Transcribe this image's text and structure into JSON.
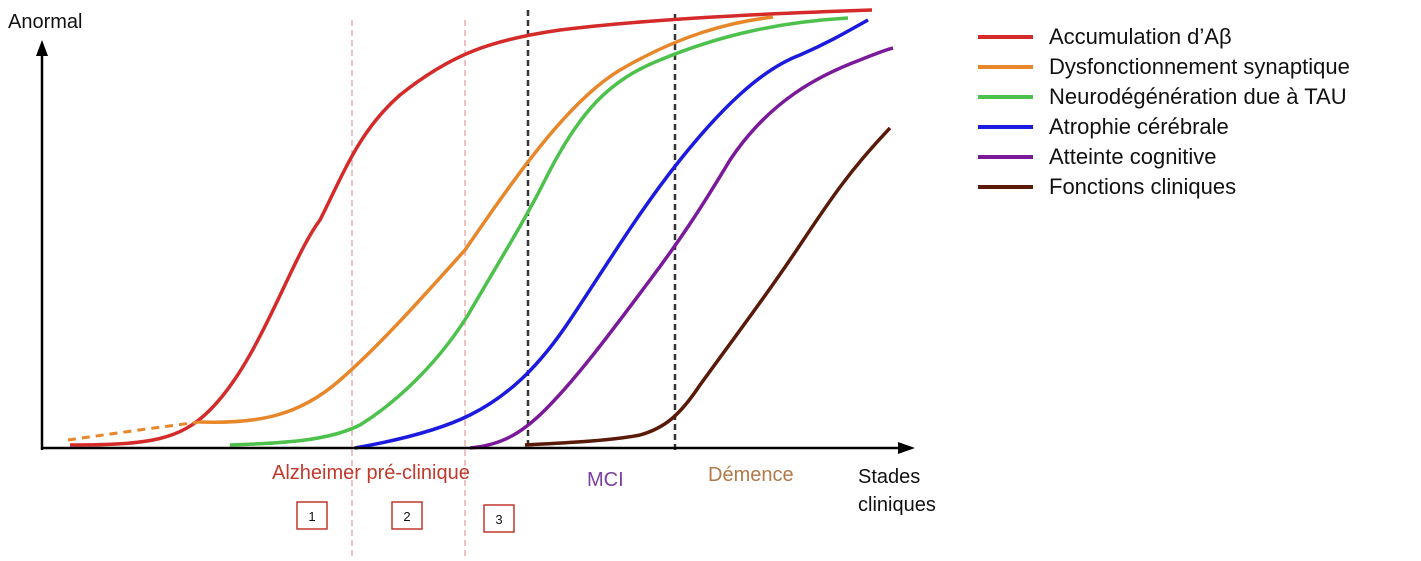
{
  "axes": {
    "y_label": "Anormal",
    "x_label_line1": "Stades",
    "x_label_line2": "cliniques"
  },
  "stages": {
    "preclinical": "Alzheimer pré-clinique",
    "mci": "MCI",
    "dementia": "Démence",
    "boxes": [
      "1",
      "2",
      "3"
    ]
  },
  "colors": {
    "preclinical": "#c0392b",
    "mci": "#7b3fa0",
    "dementia": "#b07a4a",
    "box": "#c0392b",
    "pink_dash": "#e8a0a0",
    "black_dash": "#333333"
  },
  "legend": [
    {
      "label": "Accumulation d’Aβ",
      "color": "#d42a2a"
    },
    {
      "label": "Dysfonctionnement synaptique",
      "color": "#e8862a"
    },
    {
      "label": "Neurodégénération due à TAU",
      "color": "#4cc14c"
    },
    {
      "label": "Atrophie cérébrale",
      "color": "#1a1ae0"
    },
    {
      "label": "Atteinte cognitive",
      "color": "#7a1a9a"
    },
    {
      "label": "Fonctions cliniques",
      "color": "#5a1a0a"
    }
  ]
}
